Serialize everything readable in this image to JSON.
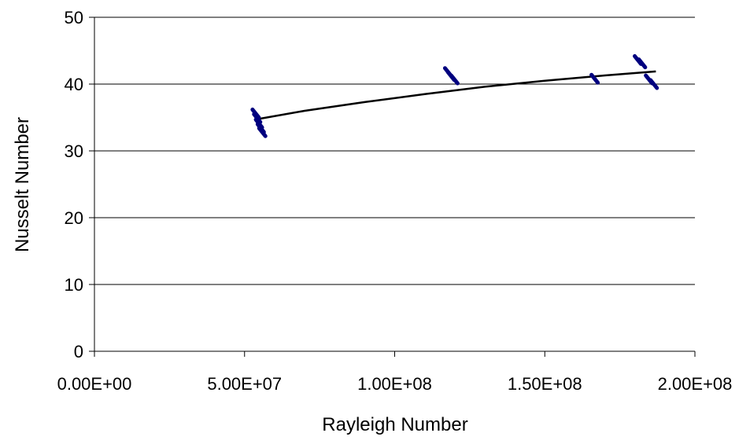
{
  "chart_data": {
    "type": "scatter",
    "title": "",
    "xlabel": "Rayleigh Number",
    "ylabel": "Nusselt Number",
    "xlim": [
      0,
      200000000
    ],
    "ylim": [
      0,
      50
    ],
    "x_ticks": [
      0,
      50000000,
      100000000,
      150000000,
      200000000
    ],
    "x_tick_labels": [
      "0.00E+00",
      "5.00E+07",
      "1.00E+08",
      "1.50E+08",
      "2.00E+08"
    ],
    "y_ticks": [
      0,
      10,
      20,
      30,
      40,
      50
    ],
    "y_tick_labels": [
      "0",
      "10",
      "20",
      "30",
      "40",
      "50"
    ],
    "grid": "horizontal major gridlines",
    "legend": "none",
    "series": [
      {
        "marker": "dash",
        "color": "#00007F",
        "points": [
          {
            "x": 53700000,
            "y": 35.6
          },
          {
            "x": 54200000,
            "y": 34.9
          },
          {
            "x": 54800000,
            "y": 34.1
          },
          {
            "x": 55400000,
            "y": 33.4
          },
          {
            "x": 55900000,
            "y": 32.8
          },
          {
            "x": 117800000,
            "y": 41.8
          },
          {
            "x": 118800000,
            "y": 41.2
          },
          {
            "x": 119900000,
            "y": 40.7
          },
          {
            "x": 166600000,
            "y": 40.8
          },
          {
            "x": 181000000,
            "y": 43.6
          },
          {
            "x": 182400000,
            "y": 43.1
          },
          {
            "x": 184700000,
            "y": 40.7
          },
          {
            "x": 186300000,
            "y": 40.0
          }
        ]
      },
      {
        "marker": "line",
        "color": "#000000",
        "points": [
          {
            "x": 53700000,
            "y": 34.7
          },
          {
            "x": 70000000,
            "y": 36.0
          },
          {
            "x": 90000000,
            "y": 37.3
          },
          {
            "x": 110000000,
            "y": 38.5
          },
          {
            "x": 130000000,
            "y": 39.6
          },
          {
            "x": 150000000,
            "y": 40.5
          },
          {
            "x": 170000000,
            "y": 41.3
          },
          {
            "x": 187000000,
            "y": 41.9
          }
        ]
      }
    ]
  }
}
